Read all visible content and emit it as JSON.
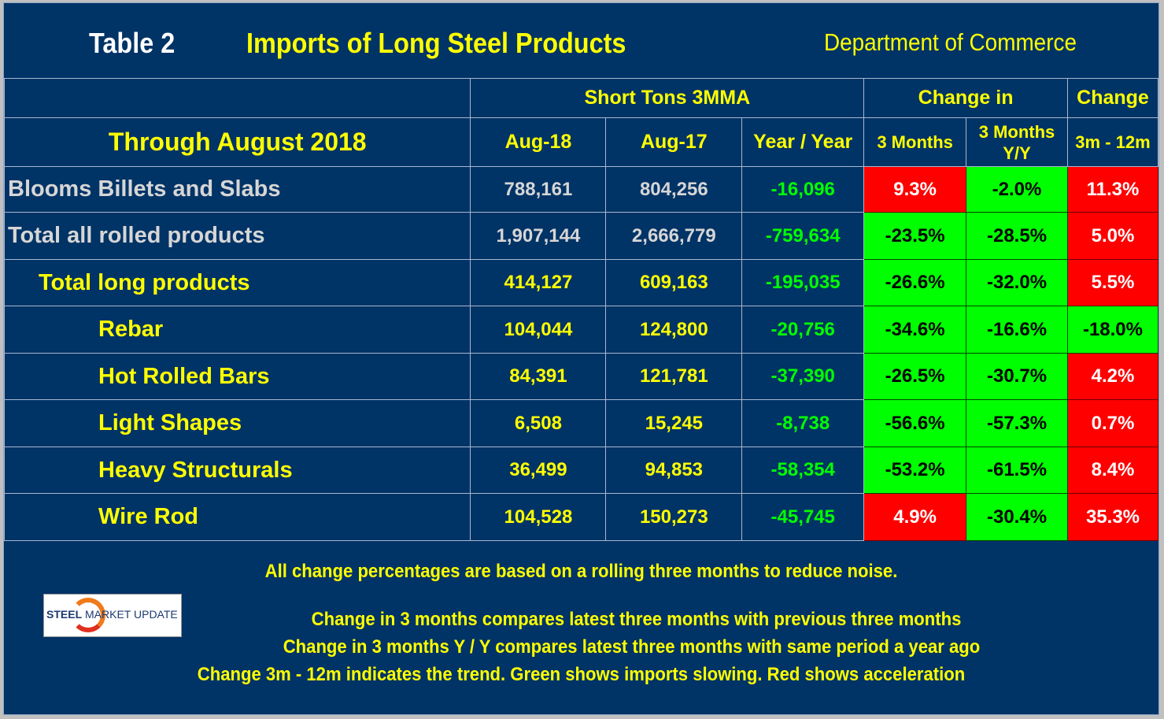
{
  "title": {
    "table_label": "Table 2",
    "main_title": "Imports of Long Steel Products",
    "source": "Department of Commerce"
  },
  "header": {
    "period": "Through August 2018",
    "group_short_tons": "Short Tons 3MMA",
    "group_change_in": "Change in",
    "group_change": "Change",
    "col_aug18": "Aug-18",
    "col_aug17": "Aug-17",
    "col_yoy": "Year / Year",
    "col_3m": "3 Months",
    "col_3m_yy_line1": "3 Months",
    "col_3m_yy_line2": "Y/Y",
    "col_3m_12m": "3m - 12m"
  },
  "colors": {
    "background": "#003366",
    "accelerating": "#ff0000",
    "slowing": "#00ff00",
    "heading": "#ffff00"
  },
  "rows": [
    {
      "product": "Blooms Billets and Slabs",
      "level": 0,
      "aug18": "788,161",
      "aug17": "804,256",
      "yoy": "-16,096",
      "chg_3m": "9.3%",
      "chg_3m_status": "red",
      "chg_3m_yy": "-2.0%",
      "chg_3m_yy_status": "green",
      "chg_3m_12m": "11.3%",
      "chg_3m_12m_status": "red"
    },
    {
      "product": "Total all rolled products",
      "level": 0,
      "aug18": "1,907,144",
      "aug17": "2,666,779",
      "yoy": "-759,634",
      "chg_3m": "-23.5%",
      "chg_3m_status": "green",
      "chg_3m_yy": "-28.5%",
      "chg_3m_yy_status": "green",
      "chg_3m_12m": "5.0%",
      "chg_3m_12m_status": "red"
    },
    {
      "product": "Total long products",
      "level": 1,
      "aug18": "414,127",
      "aug17": "609,163",
      "yoy": "-195,035",
      "chg_3m": "-26.6%",
      "chg_3m_status": "green",
      "chg_3m_yy": "-32.0%",
      "chg_3m_yy_status": "green",
      "chg_3m_12m": "5.5%",
      "chg_3m_12m_status": "red"
    },
    {
      "product": "Rebar",
      "level": 2,
      "aug18": "104,044",
      "aug17": "124,800",
      "yoy": "-20,756",
      "chg_3m": "-34.6%",
      "chg_3m_status": "green",
      "chg_3m_yy": "-16.6%",
      "chg_3m_yy_status": "green",
      "chg_3m_12m": "-18.0%",
      "chg_3m_12m_status": "green"
    },
    {
      "product": "Hot Rolled Bars",
      "level": 2,
      "aug18": "84,391",
      "aug17": "121,781",
      "yoy": "-37,390",
      "chg_3m": "-26.5%",
      "chg_3m_status": "green",
      "chg_3m_yy": "-30.7%",
      "chg_3m_yy_status": "green",
      "chg_3m_12m": "4.2%",
      "chg_3m_12m_status": "red"
    },
    {
      "product": "Light Shapes",
      "level": 2,
      "aug18": "6,508",
      "aug17": "15,245",
      "yoy": "-8,738",
      "chg_3m": "-56.6%",
      "chg_3m_status": "green",
      "chg_3m_yy": "-57.3%",
      "chg_3m_yy_status": "green",
      "chg_3m_12m": "0.7%",
      "chg_3m_12m_status": "red"
    },
    {
      "product": "Heavy Structurals",
      "level": 2,
      "aug18": "36,499",
      "aug17": "94,853",
      "yoy": "-58,354",
      "chg_3m": "-53.2%",
      "chg_3m_status": "green",
      "chg_3m_yy": "-61.5%",
      "chg_3m_yy_status": "green",
      "chg_3m_12m": "8.4%",
      "chg_3m_12m_status": "red"
    },
    {
      "product": "Wire Rod",
      "level": 2,
      "aug18": "104,528",
      "aug17": "150,273",
      "yoy": "-45,745",
      "chg_3m": "4.9%",
      "chg_3m_status": "red",
      "chg_3m_yy": "-30.4%",
      "chg_3m_yy_status": "green",
      "chg_3m_12m": "35.3%",
      "chg_3m_12m_status": "red"
    }
  ],
  "footer": {
    "note_1": "All change percentages are based on a rolling three months to reduce noise.",
    "note_2": "Change in 3 months compares latest three months with previous three months",
    "note_3": "Change in 3 months  Y / Y compares latest three months with same period a year ago",
    "note_4": "Change 3m - 12m indicates the trend. Green shows imports slowing. Red shows acceleration",
    "logo_bold": "STEEL",
    "logo_rest": " MARKET UPDATE"
  }
}
